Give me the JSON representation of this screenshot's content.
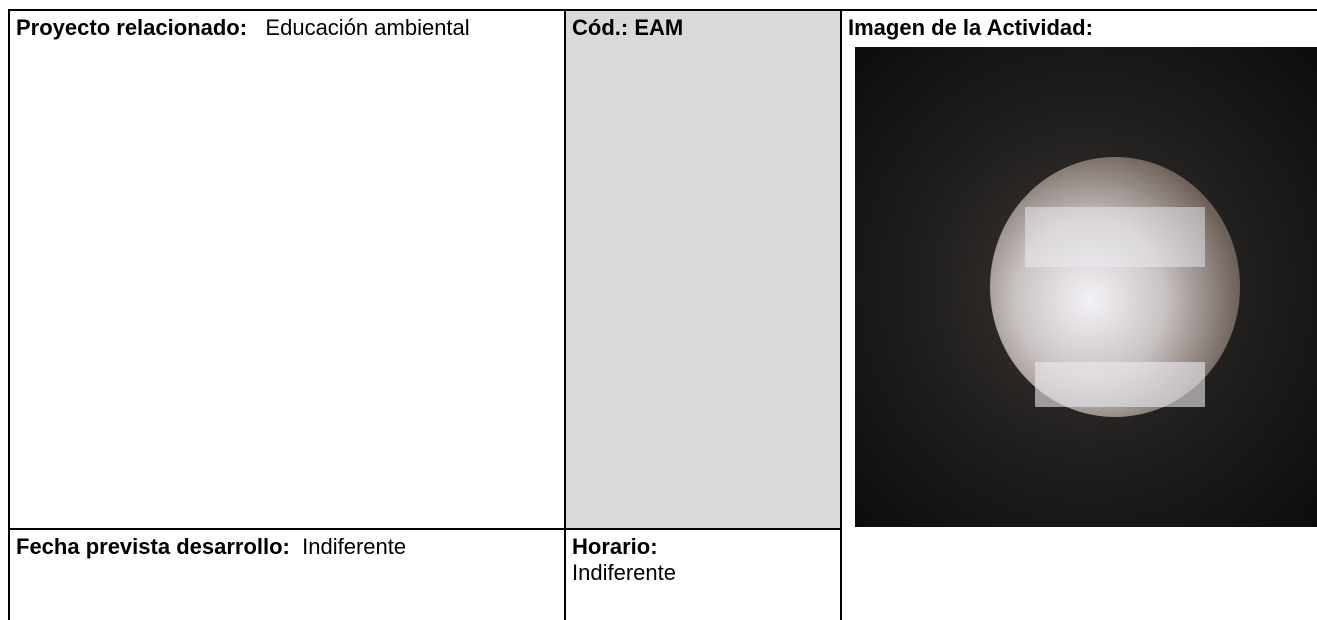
{
  "table": {
    "rows": [
      [
        {
          "label": "Proyecto relacionado:",
          "value": "Educación ambiental"
        },
        {
          "label": "Cód.:",
          "value": "EAM"
        },
        {
          "label": "Imagen de la Actividad:"
        }
      ],
      [
        {
          "label": "Fecha prevista desarrollo:",
          "value": "Indiferente"
        },
        {
          "label": "Horario:",
          "value": "Indiferente"
        }
      ]
    ]
  }
}
